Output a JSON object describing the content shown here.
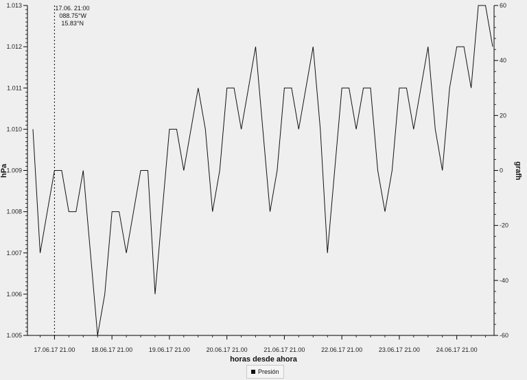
{
  "chart_data": {
    "type": "line",
    "xlabel": "horas desde ahora",
    "ylabel_left": "hPa",
    "ylabel_right": "grafh",
    "x_tick_labels": [
      "17.06.17 21.00",
      "18.06.17 21.00",
      "19.06.17 21.00",
      "20.06.17 21.00",
      "21.06.17 21.00",
      "22.06.17 21.00",
      "23.06.17 21.00",
      "24.06.17 21.00"
    ],
    "x_tick_index": [
      3,
      11,
      19,
      27,
      35,
      43,
      51,
      59
    ],
    "left_ticks": [
      "1.005",
      "1.006",
      "1.007",
      "1.008",
      "1.009",
      "1.010",
      "1.011",
      "1.012",
      "1.013"
    ],
    "left_range": [
      1.005,
      1.013
    ],
    "right_ticks": [
      "-60",
      "-40",
      "-20",
      "0",
      "20",
      "40",
      "60"
    ],
    "right_range": [
      -60,
      60
    ],
    "cursor": {
      "index": 3,
      "lines": [
        "17.06. 21:00",
        "088.75°W",
        "15.83°N"
      ]
    },
    "legend": [
      {
        "label": "Presión",
        "color": "#111111"
      }
    ],
    "series": [
      {
        "name": "Presión",
        "color": "#111111",
        "values": [
          1.01,
          1.007,
          1.008,
          1.009,
          1.009,
          1.008,
          1.008,
          1.009,
          1.007,
          1.005,
          1.006,
          1.008,
          1.008,
          1.007,
          1.008,
          1.009,
          1.009,
          1.006,
          1.008,
          1.01,
          1.01,
          1.009,
          1.01,
          1.011,
          1.01,
          1.008,
          1.009,
          1.011,
          1.011,
          1.01,
          1.011,
          1.012,
          1.01,
          1.008,
          1.009,
          1.011,
          1.011,
          1.01,
          1.011,
          1.012,
          1.01,
          1.007,
          1.009,
          1.011,
          1.011,
          1.01,
          1.011,
          1.011,
          1.009,
          1.008,
          1.009,
          1.011,
          1.011,
          1.01,
          1.011,
          1.012,
          1.01,
          1.009,
          1.011,
          1.012,
          1.012,
          1.011,
          1.013,
          1.013,
          1.012
        ]
      }
    ]
  }
}
